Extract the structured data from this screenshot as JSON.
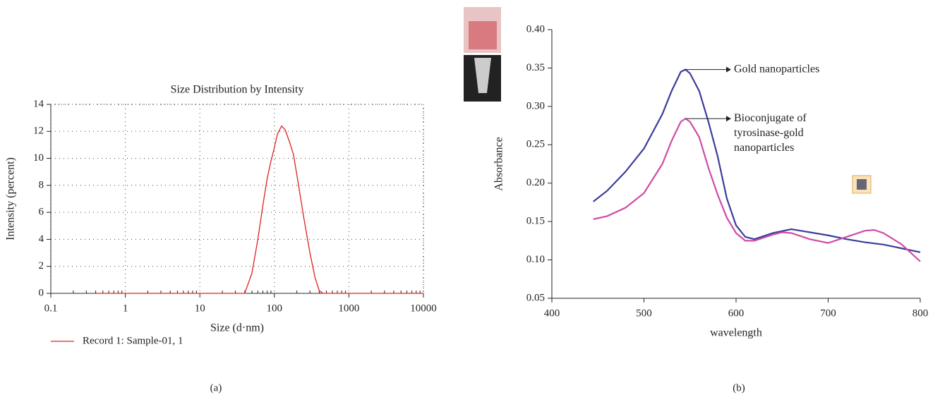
{
  "chart_data": [
    {
      "type": "line",
      "title": "Size Distribution by Intensity",
      "x_label": "Size (d·nm)",
      "y_label": "Intensity (percent)",
      "caption": "(a)",
      "log_x": true,
      "grid": true,
      "legend": "bottom-left",
      "xlim": [
        0.1,
        10000
      ],
      "xticks": [
        0.1,
        1,
        10,
        100,
        1000,
        10000
      ],
      "ylim": [
        0,
        14
      ],
      "yticks": [
        0,
        2,
        4,
        6,
        8,
        10,
        12,
        14
      ],
      "x": [
        0.4,
        1,
        10,
        30,
        40,
        50,
        60,
        70,
        80,
        90,
        100,
        110,
        125,
        140,
        160,
        180,
        200,
        250,
        300,
        350,
        400,
        450,
        1000,
        5000,
        10000
      ],
      "series": [
        {
          "name": "Record 1: Sample-01, 1",
          "color": "#e02020",
          "values": [
            0,
            0,
            0,
            0,
            0,
            1.5,
            4,
            6.5,
            8.5,
            9.8,
            10.8,
            11.8,
            12.4,
            12.1,
            11.2,
            10.3,
            8.8,
            5.5,
            3.0,
            1.2,
            0.2,
            0,
            0,
            0,
            0
          ]
        }
      ]
    },
    {
      "type": "line",
      "x_label": "wavelength",
      "y_label": "Absorbance",
      "caption": "(b)",
      "grid": false,
      "xlim": [
        400,
        800
      ],
      "xticks": [
        400,
        500,
        600,
        700,
        800
      ],
      "ylim": [
        0.05,
        0.4
      ],
      "yticks": [
        0.05,
        {
          "value": 0.1,
          "label": "0.10"
        },
        0.15,
        {
          "value": 0.2,
          "label": "0.20"
        },
        0.25,
        {
          "value": 0.3,
          "label": "0.30"
        },
        0.35,
        {
          "value": 0.4,
          "label": "0.40"
        }
      ],
      "annotations": [
        {
          "text": [
            "Gold nanoparticles"
          ]
        },
        {
          "text": [
            "Bioconjugate of",
            "tyrosinase-gold",
            "nanoparticles"
          ]
        }
      ],
      "series": [
        {
          "color": "#3c3c9a",
          "x": [
            445,
            460,
            480,
            500,
            520,
            530,
            540,
            545,
            550,
            560,
            570,
            580,
            590,
            600,
            610,
            620,
            640,
            660,
            680,
            700,
            720,
            740,
            760,
            780,
            800
          ],
          "values": [
            0.176,
            0.19,
            0.215,
            0.245,
            0.29,
            0.32,
            0.345,
            0.348,
            0.343,
            0.32,
            0.28,
            0.235,
            0.18,
            0.145,
            0.13,
            0.127,
            0.135,
            0.14,
            0.136,
            0.132,
            0.127,
            0.123,
            0.12,
            0.115,
            0.11
          ]
        },
        {
          "color": "#d04aa8",
          "x": [
            445,
            460,
            480,
            500,
            520,
            530,
            540,
            545,
            550,
            560,
            570,
            580,
            590,
            600,
            610,
            620,
            640,
            650,
            660,
            680,
            700,
            720,
            740,
            750,
            760,
            780,
            800
          ],
          "values": [
            0.153,
            0.157,
            0.168,
            0.187,
            0.225,
            0.255,
            0.28,
            0.284,
            0.28,
            0.26,
            0.22,
            0.185,
            0.155,
            0.135,
            0.125,
            0.125,
            0.133,
            0.136,
            0.135,
            0.127,
            0.122,
            0.13,
            0.138,
            0.139,
            0.135,
            0.12,
            0.098
          ]
        }
      ]
    }
  ]
}
